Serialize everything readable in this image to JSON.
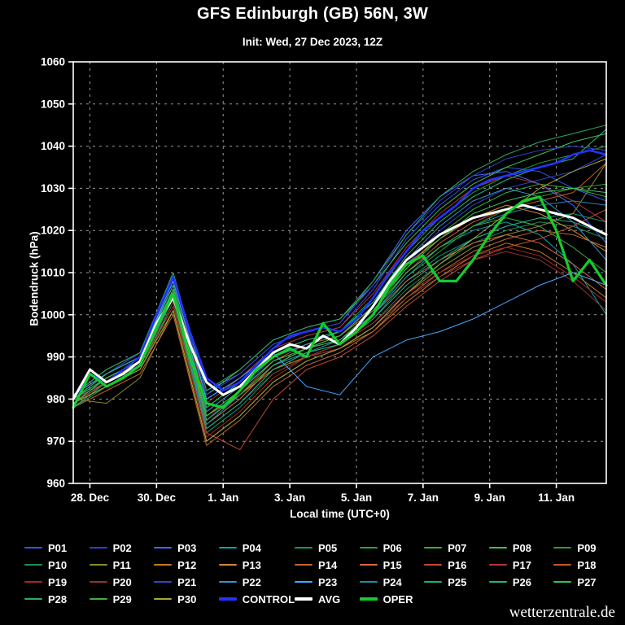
{
  "page": {
    "watermark": "wetterzentrale.de"
  },
  "chart_data": {
    "type": "line",
    "title": "GFS Edinburgh (GB) 56N, 3W",
    "subtitle": "Init: Wed, 27 Dec 2023, 12Z",
    "xlabel": "Local time (UTC+0)",
    "ylabel": "Bodendruck (hPa)",
    "ylim": [
      960,
      1060
    ],
    "ytick_step": 10,
    "xlim_days": [
      0,
      16
    ],
    "xticks": [
      {
        "day": 0.5,
        "label": "28. Dec"
      },
      {
        "day": 2.5,
        "label": "30. Dec"
      },
      {
        "day": 4.5,
        "label": "1. Jan"
      },
      {
        "day": 6.5,
        "label": "3. Jan"
      },
      {
        "day": 8.5,
        "label": "5. Jan"
      },
      {
        "day": 10.5,
        "label": "7. Jan"
      },
      {
        "day": 12.5,
        "label": "9. Jan"
      },
      {
        "day": 14.5,
        "label": "11. Jan"
      }
    ],
    "grid": "dashed",
    "legend_position": "bottom",
    "background": "#000000",
    "axis_color": "#ffffff",
    "grid_color": "#9a9a9a",
    "main_series": [
      {
        "name": "CONTROL",
        "color": "#2233ff",
        "width": 2.6,
        "x_step": 0.5,
        "values": [
          980,
          986,
          984,
          987,
          990,
          1000,
          1009,
          996,
          985,
          982,
          984,
          988,
          992,
          995,
          996,
          997,
          996,
          999,
          1004,
          1010,
          1015,
          1020,
          1023,
          1026,
          1030,
          1032,
          1033,
          1034,
          1035,
          1036,
          1038,
          1039,
          1038
        ]
      },
      {
        "name": "AVG",
        "color": "#ffffff",
        "width": 3.0,
        "x_step": 0.5,
        "values": [
          980,
          987,
          984,
          986,
          989,
          998,
          1004,
          993,
          984,
          981,
          983,
          987,
          991,
          993,
          992,
          995,
          993,
          997,
          1002,
          1008,
          1013,
          1016,
          1019,
          1021,
          1023,
          1024,
          1025,
          1026,
          1025,
          1024,
          1023,
          1021,
          1019
        ]
      },
      {
        "name": "OPER",
        "color": "#15cc2e",
        "width": 3.2,
        "x_step": 0.5,
        "values": [
          978,
          986,
          983,
          985,
          988,
          997,
          1005,
          990,
          979,
          978,
          982,
          987,
          990,
          992,
          990,
          998,
          993,
          996,
          1000,
          1007,
          1012,
          1014,
          1008,
          1008,
          1013,
          1019,
          1024,
          1027,
          1028,
          1020,
          1008,
          1013,
          1007
        ]
      }
    ],
    "ensemble_members": [
      {
        "name": "P01",
        "color": "#3355ee",
        "width": 1,
        "x_step": 1,
        "values": [
          980,
          986,
          990,
          1008,
          980,
          985,
          992,
          995,
          997,
          1006,
          1018,
          1026,
          1032,
          1035,
          1034,
          1030,
          1027
        ]
      },
      {
        "name": "P02",
        "color": "#2a44cc",
        "width": 1,
        "x_step": 1,
        "values": [
          979,
          984,
          988,
          1005,
          975,
          982,
          990,
          993,
          995,
          1002,
          1012,
          1020,
          1026,
          1030,
          1032,
          1034,
          1038
        ]
      },
      {
        "name": "P03",
        "color": "#4466ff",
        "width": 1,
        "x_step": 1,
        "values": [
          981,
          986,
          991,
          1010,
          982,
          986,
          993,
          996,
          998,
          1008,
          1020,
          1028,
          1033,
          1034,
          1031,
          1026,
          1017
        ]
      },
      {
        "name": "P04",
        "color": "#00a8b0",
        "width": 1,
        "x_step": 1,
        "values": [
          980,
          985,
          989,
          1004,
          974,
          980,
          988,
          992,
          994,
          1000,
          1010,
          1016,
          1020,
          1022,
          1019,
          1012,
          1000
        ]
      },
      {
        "name": "P05",
        "color": "#00a078",
        "width": 1,
        "x_step": 1,
        "values": [
          978,
          983,
          987,
          1003,
          972,
          978,
          986,
          990,
          993,
          999,
          1008,
          1014,
          1018,
          1021,
          1023,
          1024,
          1022
        ]
      },
      {
        "name": "P06",
        "color": "#1fa83c",
        "width": 1,
        "x_step": 1,
        "values": [
          980,
          986,
          990,
          1007,
          978,
          984,
          991,
          994,
          996,
          1004,
          1015,
          1023,
          1029,
          1033,
          1036,
          1038,
          1040
        ]
      },
      {
        "name": "P07",
        "color": "#33b433",
        "width": 1,
        "x_step": 1,
        "values": [
          979,
          985,
          989,
          1006,
          976,
          982,
          989,
          992,
          995,
          1001,
          1011,
          1019,
          1025,
          1029,
          1031,
          1030,
          1028
        ]
      },
      {
        "name": "P08",
        "color": "#3fc24f",
        "width": 1,
        "x_step": 1,
        "values": [
          981,
          987,
          991,
          1009,
          981,
          987,
          994,
          997,
          999,
          1007,
          1017,
          1025,
          1031,
          1035,
          1038,
          1041,
          1043
        ]
      },
      {
        "name": "P09",
        "color": "#2d9e2d",
        "width": 1,
        "x_step": 1,
        "values": [
          980,
          984,
          988,
          1002,
          973,
          979,
          987,
          991,
          994,
          1000,
          1009,
          1015,
          1021,
          1025,
          1028,
          1030,
          1031
        ]
      },
      {
        "name": "P10",
        "color": "#1f8f4f",
        "width": 1,
        "x_step": 1,
        "values": [
          978,
          983,
          988,
          1005,
          975,
          981,
          988,
          991,
          993,
          998,
          1006,
          1012,
          1017,
          1020,
          1022,
          1021,
          1018
        ]
      },
      {
        "name": "P11",
        "color": "#8a8a2a",
        "width": 1,
        "x_step": 1,
        "values": [
          980,
          979,
          985,
          1001,
          970,
          976,
          984,
          989,
          992,
          997,
          1005,
          1011,
          1016,
          1019,
          1021,
          1024,
          1036
        ]
      },
      {
        "name": "P12",
        "color": "#c27a22",
        "width": 1,
        "x_step": 1,
        "values": [
          979,
          984,
          989,
          1006,
          976,
          981,
          987,
          990,
          992,
          996,
          1003,
          1009,
          1014,
          1017,
          1015,
          1010,
          1004
        ]
      },
      {
        "name": "P13",
        "color": "#d08833",
        "width": 1,
        "x_step": 1,
        "values": [
          980,
          986,
          990,
          1007,
          977,
          983,
          990,
          993,
          995,
          1002,
          1012,
          1018,
          1023,
          1026,
          1024,
          1020,
          1015
        ]
      },
      {
        "name": "P14",
        "color": "#bf6630",
        "width": 1,
        "x_step": 1,
        "values": [
          978,
          982,
          986,
          1000,
          969,
          975,
          983,
          988,
          991,
          996,
          1004,
          1010,
          1015,
          1018,
          1020,
          1019,
          1016
        ]
      },
      {
        "name": "P15",
        "color": "#d2693f",
        "width": 1,
        "x_step": 1,
        "values": [
          980,
          985,
          989,
          1005,
          974,
          980,
          988,
          992,
          994,
          1000,
          1008,
          1013,
          1017,
          1019,
          1017,
          1012,
          1006
        ]
      },
      {
        "name": "P16",
        "color": "#c24733",
        "width": 1,
        "x_step": 1,
        "values": [
          979,
          984,
          988,
          1004,
          972,
          968,
          980,
          987,
          990,
          995,
          1002,
          1008,
          1013,
          1016,
          1018,
          1021,
          1025
        ]
      },
      {
        "name": "P17",
        "color": "#b23434",
        "width": 1,
        "x_step": 1,
        "values": [
          981,
          986,
          990,
          1008,
          979,
          985,
          992,
          995,
          997,
          1005,
          1016,
          1024,
          1030,
          1033,
          1031,
          1027,
          1022
        ]
      },
      {
        "name": "P18",
        "color": "#c55a24",
        "width": 1,
        "x_step": 1,
        "values": [
          980,
          985,
          989,
          1006,
          975,
          981,
          989,
          993,
          995,
          1001,
          1010,
          1017,
          1022,
          1025,
          1027,
          1029,
          1036
        ]
      },
      {
        "name": "P19",
        "color": "#a82626",
        "width": 1,
        "x_step": 1,
        "values": [
          979,
          983,
          987,
          1002,
          971,
          977,
          985,
          990,
          993,
          998,
          1005,
          1010,
          1014,
          1016,
          1014,
          1009,
          1003
        ]
      },
      {
        "name": "P20",
        "color": "#933333",
        "width": 1,
        "x_step": 1,
        "values": [
          980,
          984,
          988,
          1003,
          973,
          979,
          986,
          990,
          992,
          997,
          1004,
          1009,
          1013,
          1015,
          1013,
          1008,
          1001
        ]
      },
      {
        "name": "P21",
        "color": "#3344cc",
        "width": 1,
        "x_step": 1,
        "values": [
          980,
          986,
          991,
          1009,
          981,
          986,
          993,
          996,
          998,
          1007,
          1019,
          1027,
          1033,
          1037,
          1039,
          1040,
          1039
        ]
      },
      {
        "name": "P22",
        "color": "#3392cc",
        "width": 1,
        "x_step": 1,
        "values": [
          979,
          985,
          989,
          1007,
          977,
          983,
          990,
          993,
          996,
          1003,
          1013,
          1021,
          1027,
          1030,
          1028,
          1022,
          1013
        ]
      },
      {
        "name": "P23",
        "color": "#44a8ff",
        "width": 1,
        "x_step": 1,
        "values": [
          981,
          986,
          990,
          1008,
          980,
          985,
          991,
          983,
          981,
          990,
          994,
          996,
          999,
          1003,
          1007,
          1010,
          1007
        ]
      },
      {
        "name": "P24",
        "color": "#2288aa",
        "width": 1,
        "x_step": 1,
        "values": [
          980,
          985,
          989,
          1005,
          974,
          981,
          988,
          991,
          994,
          1000,
          1009,
          1016,
          1021,
          1024,
          1026,
          1027,
          1026
        ]
      },
      {
        "name": "P25",
        "color": "#22aa88",
        "width": 1,
        "x_step": 1,
        "values": [
          978,
          984,
          988,
          1004,
          973,
          979,
          987,
          991,
          993,
          999,
          1007,
          1013,
          1018,
          1021,
          1023,
          1022,
          1019
        ]
      },
      {
        "name": "P26",
        "color": "#22b877",
        "width": 1,
        "x_step": 1,
        "values": [
          980,
          986,
          990,
          1007,
          978,
          984,
          991,
          994,
          996,
          1003,
          1014,
          1022,
          1028,
          1032,
          1035,
          1037,
          1044
        ]
      },
      {
        "name": "P27",
        "color": "#33c455",
        "width": 1,
        "x_step": 1,
        "values": [
          979,
          985,
          989,
          1006,
          976,
          982,
          989,
          992,
          995,
          1002,
          1011,
          1018,
          1024,
          1027,
          1029,
          1030,
          1029
        ]
      },
      {
        "name": "P28",
        "color": "#2daa5f",
        "width": 1,
        "x_step": 1,
        "values": [
          981,
          987,
          991,
          1010,
          982,
          987,
          994,
          997,
          999,
          1008,
          1019,
          1028,
          1034,
          1038,
          1041,
          1043,
          1045
        ]
      },
      {
        "name": "P29",
        "color": "#3fae3f",
        "width": 1,
        "x_step": 1,
        "values": [
          980,
          985,
          989,
          1005,
          975,
          981,
          988,
          992,
          994,
          1001,
          1010,
          1016,
          1021,
          1023,
          1021,
          1016,
          1010
        ]
      },
      {
        "name": "P30",
        "color": "#a8a833",
        "width": 1,
        "x_step": 1,
        "values": [
          979,
          983,
          987,
          1001,
          970,
          976,
          984,
          989,
          992,
          997,
          1005,
          1012,
          1018,
          1024,
          1030,
          1034,
          1037
        ]
      }
    ]
  }
}
